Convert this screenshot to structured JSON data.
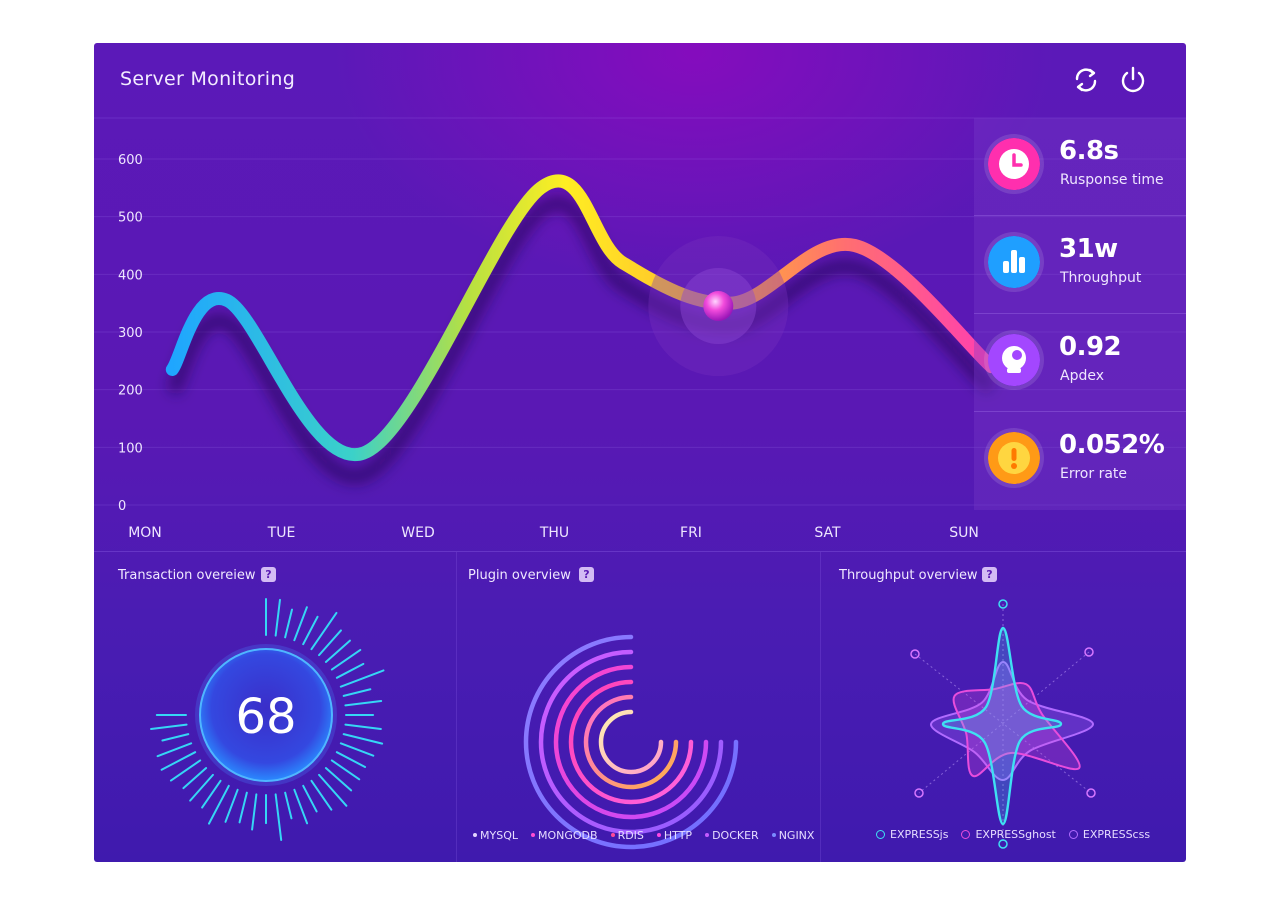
{
  "header": {
    "title": "Server Monitoring",
    "refresh_icon": "refresh-icon",
    "power_icon": "power-icon"
  },
  "main_chart": {
    "chart_data": {
      "type": "line",
      "categories": [
        "MON",
        "TUE",
        "WED",
        "THU",
        "FRI",
        "SAT",
        "SUN"
      ],
      "y_ticks": [
        "600",
        "500",
        "400",
        "300",
        "200",
        "100",
        "0"
      ],
      "ylim": [
        0,
        600
      ],
      "series": [
        {
          "x": [
            0.2,
            0.6,
            1.6,
            2.9,
            3.5,
            4.3,
            5.2,
            6.2
          ],
          "values": [
            235,
            355,
            90,
            550,
            420,
            350,
            450,
            240
          ]
        }
      ],
      "highlight_point": {
        "x": 4.2,
        "y": 345
      },
      "grid": true
    }
  },
  "kpis": [
    {
      "value": "6.8s",
      "label": "Rusponse time",
      "icon": "clock-icon",
      "color": "#ff2fae"
    },
    {
      "value": "31w",
      "label": "Throughput",
      "icon": "bar-chart-icon",
      "color": "#2aa8ff"
    },
    {
      "value": "0.92",
      "label": "Apdex",
      "icon": "gauge-icon",
      "color": "#a94cff"
    },
    {
      "value": "0.052%",
      "label": "Error rate",
      "icon": "alert-icon",
      "color": "#ffa41f"
    }
  ],
  "transaction": {
    "title": "Transaction overeiew",
    "help": "?",
    "value": "68"
  },
  "plugin": {
    "title": "Plugin overview",
    "help": "?",
    "legend": [
      {
        "name": "MYSQL",
        "color": "#e3d4ff"
      },
      {
        "name": "MONGODB",
        "color": "#ff4dd3"
      },
      {
        "name": "RDIS",
        "color": "#ff4a9a"
      },
      {
        "name": "HTTP",
        "color": "#ff47e6"
      },
      {
        "name": "DOCKER",
        "color": "#c45bff"
      },
      {
        "name": "NGINX",
        "color": "#7a8bff"
      }
    ]
  },
  "throughput": {
    "title": "Throughput overview",
    "help": "?",
    "legend": [
      {
        "name": "EXPRESSjs",
        "color": "#3fe0f2"
      },
      {
        "name": "EXPRESSghost",
        "color": "#e84ddc"
      },
      {
        "name": "EXPRESScss",
        "color": "#b16bff"
      }
    ]
  }
}
